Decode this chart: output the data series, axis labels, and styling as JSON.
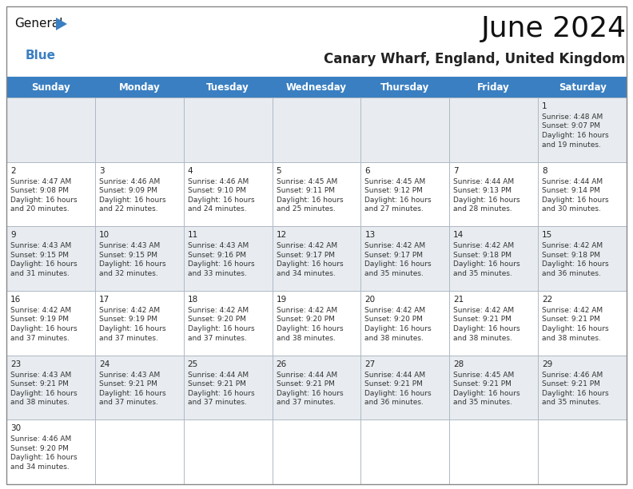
{
  "title": "June 2024",
  "subtitle": "Canary Wharf, England, United Kingdom",
  "days_of_week": [
    "Sunday",
    "Monday",
    "Tuesday",
    "Wednesday",
    "Thursday",
    "Friday",
    "Saturday"
  ],
  "header_bg": "#3a7fc1",
  "header_text": "#ffffff",
  "cell_bg_light": "#e8ecf0",
  "cell_bg_white": "#ffffff",
  "grid_color": "#aab4c0",
  "day_number_color": "#222222",
  "text_color": "#333333",
  "title_color": "#111111",
  "subtitle_color": "#222222",
  "logo_black": "#111111",
  "logo_blue": "#3a7fc1",
  "calendar": [
    [
      null,
      null,
      null,
      null,
      null,
      null,
      {
        "day": "1",
        "sunrise": "4:48 AM",
        "sunset": "9:07 PM",
        "dl1": "Daylight: 16 hours",
        "dl2": "and 19 minutes."
      }
    ],
    [
      {
        "day": "2",
        "sunrise": "4:47 AM",
        "sunset": "9:08 PM",
        "dl1": "Daylight: 16 hours",
        "dl2": "and 20 minutes."
      },
      {
        "day": "3",
        "sunrise": "4:46 AM",
        "sunset": "9:09 PM",
        "dl1": "Daylight: 16 hours",
        "dl2": "and 22 minutes."
      },
      {
        "day": "4",
        "sunrise": "4:46 AM",
        "sunset": "9:10 PM",
        "dl1": "Daylight: 16 hours",
        "dl2": "and 24 minutes."
      },
      {
        "day": "5",
        "sunrise": "4:45 AM",
        "sunset": "9:11 PM",
        "dl1": "Daylight: 16 hours",
        "dl2": "and 25 minutes."
      },
      {
        "day": "6",
        "sunrise": "4:45 AM",
        "sunset": "9:12 PM",
        "dl1": "Daylight: 16 hours",
        "dl2": "and 27 minutes."
      },
      {
        "day": "7",
        "sunrise": "4:44 AM",
        "sunset": "9:13 PM",
        "dl1": "Daylight: 16 hours",
        "dl2": "and 28 minutes."
      },
      {
        "day": "8",
        "sunrise": "4:44 AM",
        "sunset": "9:14 PM",
        "dl1": "Daylight: 16 hours",
        "dl2": "and 30 minutes."
      }
    ],
    [
      {
        "day": "9",
        "sunrise": "4:43 AM",
        "sunset": "9:15 PM",
        "dl1": "Daylight: 16 hours",
        "dl2": "and 31 minutes."
      },
      {
        "day": "10",
        "sunrise": "4:43 AM",
        "sunset": "9:15 PM",
        "dl1": "Daylight: 16 hours",
        "dl2": "and 32 minutes."
      },
      {
        "day": "11",
        "sunrise": "4:43 AM",
        "sunset": "9:16 PM",
        "dl1": "Daylight: 16 hours",
        "dl2": "and 33 minutes."
      },
      {
        "day": "12",
        "sunrise": "4:42 AM",
        "sunset": "9:17 PM",
        "dl1": "Daylight: 16 hours",
        "dl2": "and 34 minutes."
      },
      {
        "day": "13",
        "sunrise": "4:42 AM",
        "sunset": "9:17 PM",
        "dl1": "Daylight: 16 hours",
        "dl2": "and 35 minutes."
      },
      {
        "day": "14",
        "sunrise": "4:42 AM",
        "sunset": "9:18 PM",
        "dl1": "Daylight: 16 hours",
        "dl2": "and 35 minutes."
      },
      {
        "day": "15",
        "sunrise": "4:42 AM",
        "sunset": "9:18 PM",
        "dl1": "Daylight: 16 hours",
        "dl2": "and 36 minutes."
      }
    ],
    [
      {
        "day": "16",
        "sunrise": "4:42 AM",
        "sunset": "9:19 PM",
        "dl1": "Daylight: 16 hours",
        "dl2": "and 37 minutes."
      },
      {
        "day": "17",
        "sunrise": "4:42 AM",
        "sunset": "9:19 PM",
        "dl1": "Daylight: 16 hours",
        "dl2": "and 37 minutes."
      },
      {
        "day": "18",
        "sunrise": "4:42 AM",
        "sunset": "9:20 PM",
        "dl1": "Daylight: 16 hours",
        "dl2": "and 37 minutes."
      },
      {
        "day": "19",
        "sunrise": "4:42 AM",
        "sunset": "9:20 PM",
        "dl1": "Daylight: 16 hours",
        "dl2": "and 38 minutes."
      },
      {
        "day": "20",
        "sunrise": "4:42 AM",
        "sunset": "9:20 PM",
        "dl1": "Daylight: 16 hours",
        "dl2": "and 38 minutes."
      },
      {
        "day": "21",
        "sunrise": "4:42 AM",
        "sunset": "9:21 PM",
        "dl1": "Daylight: 16 hours",
        "dl2": "and 38 minutes."
      },
      {
        "day": "22",
        "sunrise": "4:42 AM",
        "sunset": "9:21 PM",
        "dl1": "Daylight: 16 hours",
        "dl2": "and 38 minutes."
      }
    ],
    [
      {
        "day": "23",
        "sunrise": "4:43 AM",
        "sunset": "9:21 PM",
        "dl1": "Daylight: 16 hours",
        "dl2": "and 38 minutes."
      },
      {
        "day": "24",
        "sunrise": "4:43 AM",
        "sunset": "9:21 PM",
        "dl1": "Daylight: 16 hours",
        "dl2": "and 37 minutes."
      },
      {
        "day": "25",
        "sunrise": "4:44 AM",
        "sunset": "9:21 PM",
        "dl1": "Daylight: 16 hours",
        "dl2": "and 37 minutes."
      },
      {
        "day": "26",
        "sunrise": "4:44 AM",
        "sunset": "9:21 PM",
        "dl1": "Daylight: 16 hours",
        "dl2": "and 37 minutes."
      },
      {
        "day": "27",
        "sunrise": "4:44 AM",
        "sunset": "9:21 PM",
        "dl1": "Daylight: 16 hours",
        "dl2": "and 36 minutes."
      },
      {
        "day": "28",
        "sunrise": "4:45 AM",
        "sunset": "9:21 PM",
        "dl1": "Daylight: 16 hours",
        "dl2": "and 35 minutes."
      },
      {
        "day": "29",
        "sunrise": "4:46 AM",
        "sunset": "9:21 PM",
        "dl1": "Daylight: 16 hours",
        "dl2": "and 35 minutes."
      }
    ],
    [
      {
        "day": "30",
        "sunrise": "4:46 AM",
        "sunset": "9:20 PM",
        "dl1": "Daylight: 16 hours",
        "dl2": "and 34 minutes."
      },
      null,
      null,
      null,
      null,
      null,
      null
    ]
  ]
}
